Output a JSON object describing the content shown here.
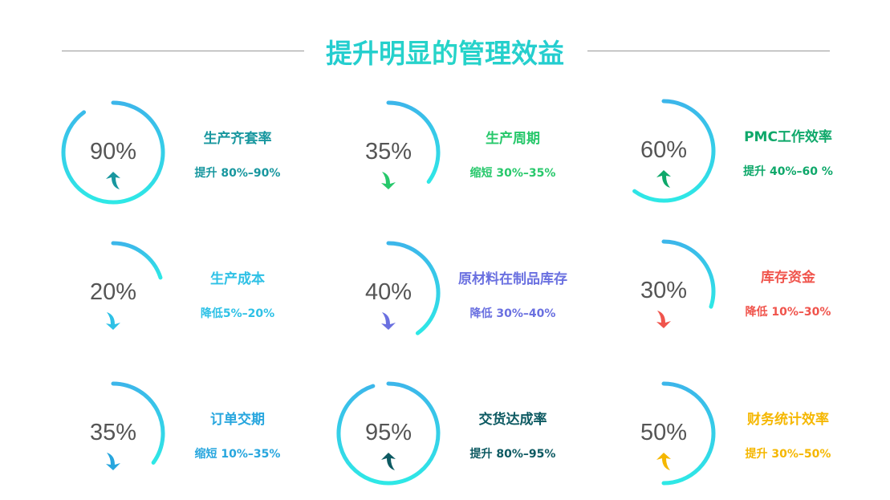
{
  "title": "提升明显的管理效益",
  "metrics": [
    {
      "percent": 90,
      "value_label": "90%",
      "name": "生产齐套率",
      "detail": "提升 80%–90%",
      "direction": "up",
      "color": "#18979f"
    },
    {
      "percent": 35,
      "value_label": "35%",
      "name": "生产周期",
      "detail": "缩短 30%–35%",
      "direction": "down",
      "color": "#27c86b"
    },
    {
      "percent": 60,
      "value_label": "60%",
      "name": "PMC工作效率",
      "detail": "提升 40%–60 %",
      "direction": "up",
      "color": "#0ea86a"
    },
    {
      "percent": 20,
      "value_label": "20%",
      "name": "生产成本",
      "detail": "降低5%–20%",
      "direction": "down",
      "color": "#2ec1e6"
    },
    {
      "percent": 40,
      "value_label": "40%",
      "name": "原材料在制品库存",
      "detail": "降低 30%–40%",
      "direction": "down",
      "color": "#6a70e0"
    },
    {
      "percent": 30,
      "value_label": "30%",
      "name": "库存资金",
      "detail": "降低 10%–30%",
      "direction": "down",
      "color": "#f0544c"
    },
    {
      "percent": 35,
      "value_label": "35%",
      "name": "订单交期",
      "detail": "缩短 10%–35%",
      "direction": "down",
      "color": "#27a6de"
    },
    {
      "percent": 95,
      "value_label": "95%",
      "name": "交货达成率",
      "detail": "提升 80%–95%",
      "direction": "up",
      "color": "#0d5a62"
    },
    {
      "percent": 50,
      "value_label": "50%",
      "name": "财务统计效率",
      "detail": "提升 30%–50%",
      "direction": "up",
      "color": "#f5b700"
    }
  ],
  "ring_colors": {
    "top": "#3cb6ea",
    "bottom": "#2ee8e6"
  }
}
